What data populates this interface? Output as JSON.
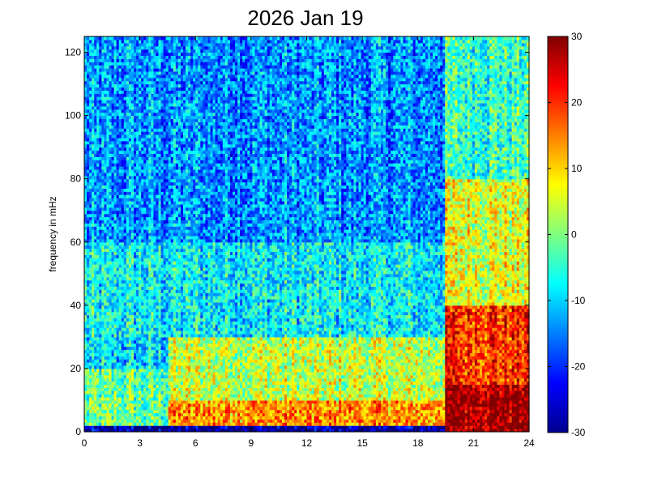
{
  "chart_data": {
    "type": "heatmap",
    "title": "2026 Jan 19",
    "xlabel": "",
    "ylabel": "frequency in mHz",
    "xlim": [
      0,
      24
    ],
    "ylim": [
      0,
      125
    ],
    "x_ticks": [
      0,
      3,
      6,
      9,
      12,
      15,
      18,
      21,
      24
    ],
    "y_ticks": [
      0,
      20,
      40,
      60,
      80,
      100,
      120
    ],
    "colorbar": {
      "range": [
        -30,
        30
      ],
      "ticks": [
        -30,
        -20,
        -10,
        0,
        10,
        20,
        30
      ],
      "colormap": "jet"
    },
    "grid": false,
    "approximate_power_levels": {
      "description_ranges_dB": [
        {
          "hours": [
            0,
            19.5
          ],
          "freq_mHz": [
            0,
            2
          ],
          "level": -28
        },
        {
          "hours": [
            0,
            4.5
          ],
          "freq_mHz": [
            2,
            20
          ],
          "level": -2
        },
        {
          "hours": [
            4.5,
            19.5
          ],
          "freq_mHz": [
            2,
            10
          ],
          "level": 14
        },
        {
          "hours": [
            4.5,
            19.5
          ],
          "freq_mHz": [
            10,
            30
          ],
          "level": 4
        },
        {
          "hours": [
            0,
            19.5
          ],
          "freq_mHz": [
            30,
            60
          ],
          "level": -8
        },
        {
          "hours": [
            0,
            19.5
          ],
          "freq_mHz": [
            60,
            125
          ],
          "level": -14
        },
        {
          "hours": [
            19.5,
            24
          ],
          "freq_mHz": [
            0,
            15
          ],
          "level": 29
        },
        {
          "hours": [
            19.5,
            24
          ],
          "freq_mHz": [
            15,
            40
          ],
          "level": 20
        },
        {
          "hours": [
            19.5,
            24
          ],
          "freq_mHz": [
            40,
            80
          ],
          "level": 6
        },
        {
          "hours": [
            19.5,
            24
          ],
          "freq_mHz": [
            80,
            125
          ],
          "level": -4
        }
      ]
    }
  }
}
